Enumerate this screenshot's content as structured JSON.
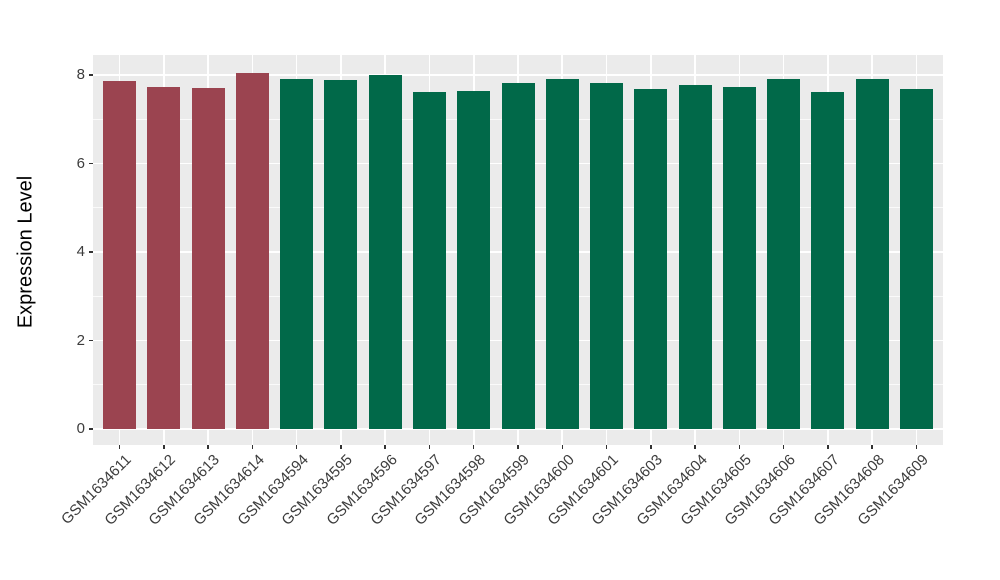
{
  "figure": {
    "background": "#FFFFFF",
    "panel_background": "#EBEBEB",
    "grid_color": "#FFFFFF",
    "axis_text_color": "#3C3C3C",
    "axis_title_color": "#000000",
    "tick_color": "#333333"
  },
  "chart_data": {
    "type": "bar",
    "title": "",
    "xlabel": "",
    "ylabel": "Expression Level",
    "ylim": [
      0,
      8.45
    ],
    "yticks_major": [
      0,
      2,
      4,
      6,
      8
    ],
    "yticks_minor": [
      1,
      3,
      5,
      7
    ],
    "grid": true,
    "legend": "none",
    "categories": [
      "GSM1634611",
      "GSM1634612",
      "GSM1634613",
      "GSM1634614",
      "GSM1634594",
      "GSM1634595",
      "GSM1634596",
      "GSM1634597",
      "GSM1634598",
      "GSM1634599",
      "GSM1634600",
      "GSM1634601",
      "GSM1634603",
      "GSM1634604",
      "GSM1634605",
      "GSM1634606",
      "GSM1634607",
      "GSM1634608",
      "GSM1634609"
    ],
    "series": [
      {
        "name": "Expression Level",
        "values": [
          7.87,
          7.74,
          7.7,
          8.04,
          7.91,
          7.89,
          8.01,
          7.61,
          7.64,
          7.83,
          7.92,
          7.81,
          7.69,
          7.77,
          7.74,
          7.91,
          7.62,
          7.91,
          7.68
        ]
      }
    ],
    "bar_groups": [
      "group1",
      "group1",
      "group1",
      "group1",
      "group2",
      "group2",
      "group2",
      "group2",
      "group2",
      "group2",
      "group2",
      "group2",
      "group2",
      "group2",
      "group2",
      "group2",
      "group2",
      "group2",
      "group2"
    ],
    "group_colors": {
      "group1": "#9B4450",
      "group2": "#016949"
    }
  }
}
